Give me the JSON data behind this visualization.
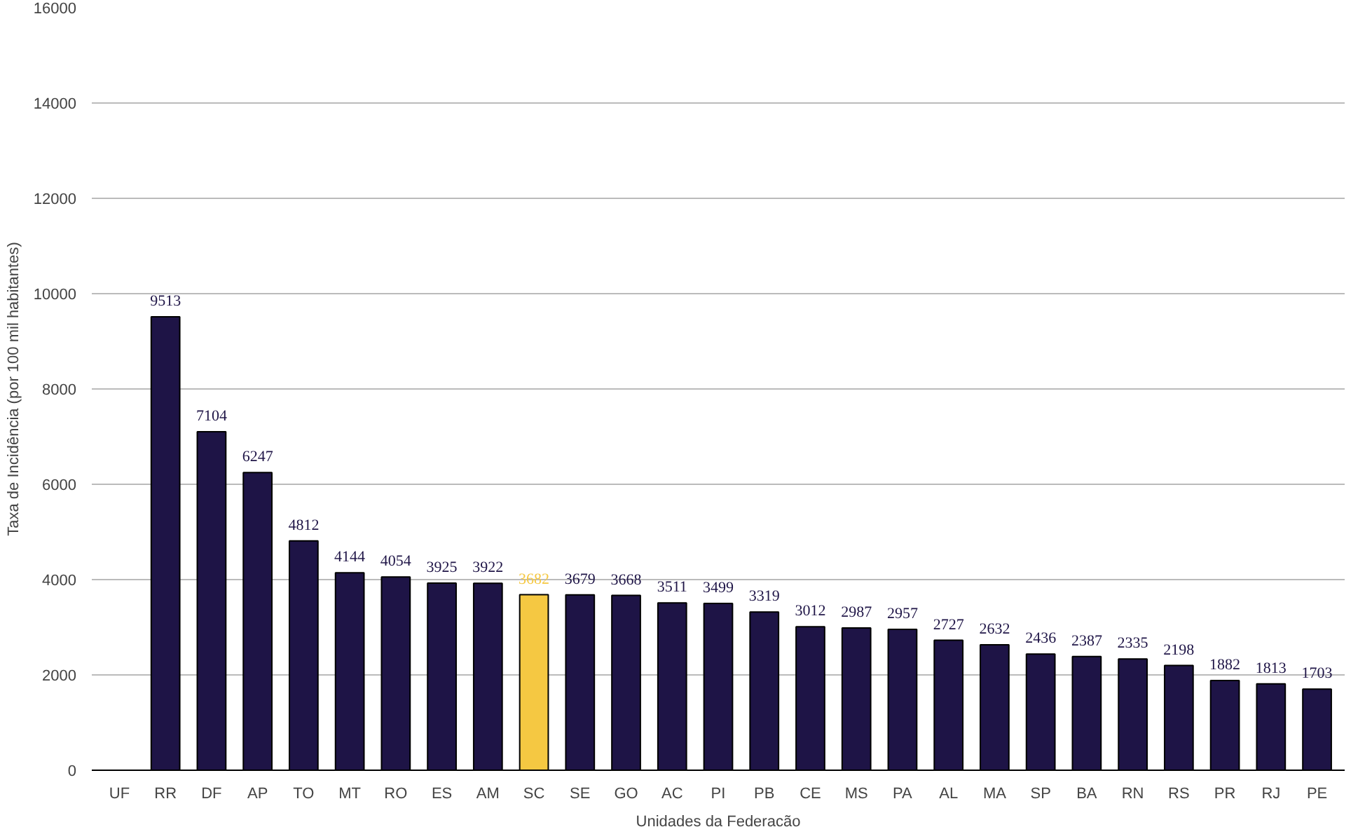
{
  "chart_data": {
    "type": "bar",
    "xlabel": "Unidades da Federacão",
    "ylabel": "Taxa de Incidência (por 100 mil habitantes)",
    "categories": [
      "UF",
      "RR",
      "DF",
      "AP",
      "TO",
      "MT",
      "RO",
      "ES",
      "AM",
      "SC",
      "SE",
      "GO",
      "AC",
      "PI",
      "PB",
      "CE",
      "MS",
      "PA",
      "AL",
      "MA",
      "SP",
      "BA",
      "RN",
      "RS",
      "PR",
      "RJ",
      "PE"
    ],
    "values": [
      null,
      9513,
      7104,
      6247,
      4812,
      4144,
      4054,
      3925,
      3922,
      3682,
      3679,
      3668,
      3511,
      3499,
      3319,
      3012,
      2987,
      2957,
      2727,
      2632,
      2436,
      2387,
      2335,
      2198,
      1882,
      1813,
      1703
    ],
    "colors": [
      "#1e1446",
      "#1e1446",
      "#1e1446",
      "#1e1446",
      "#1e1446",
      "#1e1446",
      "#1e1446",
      "#1e1446",
      "#1e1446",
      "#f5c842",
      "#1e1446",
      "#1e1446",
      "#1e1446",
      "#1e1446",
      "#1e1446",
      "#1e1446",
      "#1e1446",
      "#1e1446",
      "#1e1446",
      "#1e1446",
      "#1e1446",
      "#1e1446",
      "#1e1446",
      "#1e1446",
      "#1e1446",
      "#1e1446",
      "#1e1446"
    ],
    "ylim": [
      0,
      16000
    ],
    "yticks": [
      0,
      2000,
      4000,
      6000,
      8000,
      10000,
      12000,
      14000,
      16000
    ],
    "grid": "y",
    "data_labels": true
  }
}
